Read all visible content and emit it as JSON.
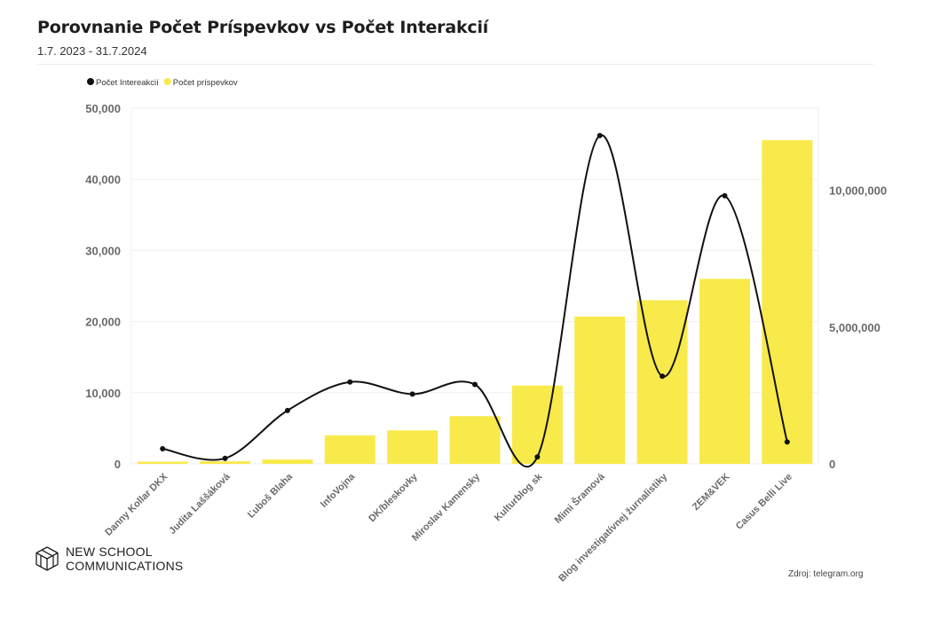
{
  "header": {
    "title": "Porovnanie Počet Príspevkov vs Počet Interakcií",
    "subtitle": "1.7. 2023 - 31.7.2024"
  },
  "footer": {
    "logo_line1": "NEW SCHOOL",
    "logo_line2": "COMMUNICATIONS",
    "source": "Zdroj: telegram.org"
  },
  "colors": {
    "bar": "#f7ea4a",
    "line": "#111111",
    "axis_text": "#6a6a6a",
    "grid": "#efefef"
  },
  "chart_data": {
    "type": "bar",
    "legend_position": "top-left",
    "grid": true,
    "categories": [
      "Danny Kollar DKX",
      "Judita Laššáková",
      "Ľuboš Blaha",
      "InfoVojna",
      "DK/bleskovky",
      "Miroslav Kamensky",
      "Kulturblog sk",
      "Mimi Šramová",
      "Blog investigatívnej žurnalistiky",
      "ZEM&VEK",
      "Casus Belli Live"
    ],
    "series": [
      {
        "name": "Počet príspevkov",
        "type": "bar",
        "axis": "left",
        "values": [
          300,
          350,
          600,
          4000,
          4700,
          6700,
          11000,
          20700,
          23000,
          26000,
          45500
        ]
      },
      {
        "name": "Počet Intereakcií",
        "type": "line",
        "axis": "right",
        "values": [
          550000,
          200000,
          1950000,
          2990000,
          2550000,
          2900000,
          250000,
          12000000,
          3200000,
          9800000,
          800000
        ]
      }
    ],
    "y_left": {
      "ylim": [
        0,
        50000
      ],
      "ticks": [
        0,
        10000,
        20000,
        30000,
        40000,
        50000
      ],
      "tick_labels": [
        "0",
        "10,000",
        "20,000",
        "30,000",
        "40,000",
        "50,000"
      ]
    },
    "y_right": {
      "ylim": [
        0,
        13000000
      ],
      "ticks": [
        0,
        5000000,
        10000000
      ],
      "tick_labels": [
        "0",
        "5,000,000",
        "10,000,000"
      ]
    }
  }
}
